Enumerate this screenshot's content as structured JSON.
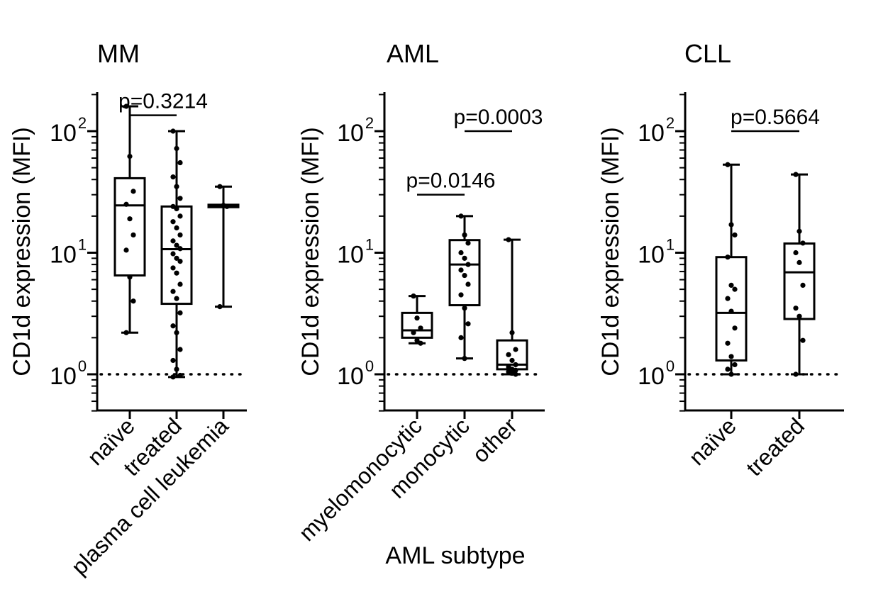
{
  "chart_data": [
    {
      "type": "box",
      "title": "MM",
      "ylabel": "CD1d expression (MFI)",
      "xlabel": "",
      "yscale": "log",
      "ylim": [
        0.5,
        200
      ],
      "yticks": [
        {
          "exp": "0",
          "value": 1
        },
        {
          "exp": "1",
          "value": 10
        },
        {
          "exp": "2",
          "value": 100
        }
      ],
      "reference_line": 1,
      "categories": [
        "naïve",
        "treated",
        "plasma cell leukemia"
      ],
      "boxes": [
        {
          "min": 2.2,
          "q1": 6.5,
          "median": 24.5,
          "q3": 41,
          "max": 160
        },
        {
          "min": 0.95,
          "q1": 3.8,
          "median": 10.7,
          "q3": 24,
          "max": 100
        },
        {
          "min": 3.6,
          "q1": 23.7,
          "median": 24.2,
          "q3": 24.8,
          "max": 35
        }
      ],
      "points": [
        [
          160,
          62,
          32,
          25,
          19,
          14,
          10.5,
          6.3,
          4,
          2.2
        ],
        [
          100,
          72,
          55,
          42,
          35,
          28,
          24,
          23,
          20,
          18,
          16,
          14,
          12.5,
          11.5,
          10.8,
          9.8,
          9,
          8.5,
          7.5,
          6.8,
          5.5,
          4.8,
          4.2,
          3.2,
          2.5,
          2.2,
          1.6,
          1.3,
          1.1,
          0.98,
          0.95
        ],
        [
          35,
          24.5,
          24,
          3.6
        ]
      ],
      "comparisons": [
        {
          "label": "p=0.3214",
          "from": 0,
          "to": 1,
          "y": 135
        }
      ]
    },
    {
      "type": "box",
      "title": "AML",
      "ylabel": "CD1d expression (MFI)",
      "xlabel": "AML subtype",
      "yscale": "log",
      "ylim": [
        0.5,
        200
      ],
      "yticks": [
        {
          "exp": "0",
          "value": 1
        },
        {
          "exp": "1",
          "value": 10
        },
        {
          "exp": "2",
          "value": 100
        }
      ],
      "reference_line": 1,
      "categories": [
        "myelomonocytic",
        "monocytic",
        "other"
      ],
      "boxes": [
        {
          "min": 1.8,
          "q1": 2.0,
          "median": 2.3,
          "q3": 3.2,
          "max": 4.4
        },
        {
          "min": 1.35,
          "q1": 3.7,
          "median": 8.0,
          "q3": 12.7,
          "max": 20
        },
        {
          "min": 1.0,
          "q1": 1.1,
          "median": 1.2,
          "q3": 1.9,
          "max": 12.8
        }
      ],
      "points": [
        [
          4.4,
          2.9,
          2.4,
          2.2,
          1.9,
          1.8
        ],
        [
          20,
          14,
          12,
          10,
          9,
          8,
          7.2,
          6.5,
          5.5,
          4.5,
          3.5,
          2.6,
          2.0,
          1.35
        ],
        [
          12.8,
          2.2,
          1.6,
          1.45,
          1.3,
          1.2,
          1.15,
          1.1,
          1.08,
          1.05,
          1.02,
          1.0
        ]
      ],
      "comparisons": [
        {
          "label": "p=0.0146",
          "from": 0,
          "to": 1,
          "y": 30
        },
        {
          "label": "p=0.0003",
          "from": 1,
          "to": 2,
          "y": 100
        }
      ]
    },
    {
      "type": "box",
      "title": "CLL",
      "ylabel": "CD1d expression (MFI)",
      "xlabel": "",
      "yscale": "log",
      "ylim": [
        0.5,
        200
      ],
      "yticks": [
        {
          "exp": "0",
          "value": 1
        },
        {
          "exp": "1",
          "value": 10
        },
        {
          "exp": "2",
          "value": 100
        }
      ],
      "reference_line": 1,
      "categories": [
        "naïve",
        "treated"
      ],
      "boxes": [
        {
          "min": 1.0,
          "q1": 1.3,
          "median": 3.2,
          "q3": 9.2,
          "max": 53
        },
        {
          "min": 1.0,
          "q1": 2.85,
          "median": 6.9,
          "q3": 11.9,
          "max": 44
        }
      ],
      "points": [
        [
          53,
          17,
          14,
          9.2,
          5.4,
          5.0,
          4.2,
          3.3,
          2.4,
          1.8,
          1.4,
          1.2,
          1.1,
          1.0
        ],
        [
          44,
          15,
          12,
          10,
          8.3,
          5.4,
          3.5,
          3.0,
          1.9,
          1.0
        ]
      ],
      "comparisons": [
        {
          "label": "p=0.5664",
          "from": 0,
          "to": 1,
          "y": 100
        }
      ]
    }
  ]
}
